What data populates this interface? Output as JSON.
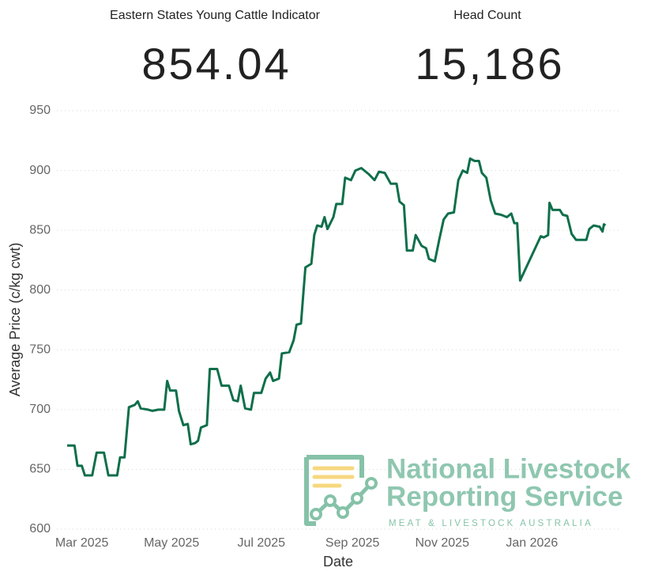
{
  "kpis": [
    {
      "label": "Eastern States Young Cattle Indicator",
      "value": "854.04"
    },
    {
      "label": "Head Count",
      "value": "15,186"
    }
  ],
  "logo": {
    "line1": "National Livestock",
    "line2": "Reporting Service",
    "tagline": "MEAT & LIVESTOCK AUSTRALIA"
  },
  "chart_data": {
    "type": "line",
    "x_label": "Date",
    "y_label": "Average Price (c/kg cwt)",
    "color": "#0f6f4a",
    "grid": true,
    "xlim": [
      "2025-02-12",
      "2026-03-02"
    ],
    "xticks": [
      {
        "value": "2025-03-01",
        "label": "Mar 2025"
      },
      {
        "value": "2025-05-01",
        "label": "May 2025"
      },
      {
        "value": "2025-07-01",
        "label": "Jul 2025"
      },
      {
        "value": "2025-09-01",
        "label": "Sep 2025"
      },
      {
        "value": "2025-11-01",
        "label": "Nov 2025"
      },
      {
        "value": "2026-01-01",
        "label": "Jan 2026"
      }
    ],
    "ylim": [
      600,
      950
    ],
    "yticks": [
      600,
      650,
      700,
      750,
      800,
      850,
      900,
      950
    ],
    "x": [
      "2025-02-19",
      "2025-02-24",
      "2025-02-26",
      "2025-03-01",
      "2025-03-03",
      "2025-03-08",
      "2025-03-11",
      "2025-03-16",
      "2025-03-19",
      "2025-03-25",
      "2025-03-27",
      "2025-03-30",
      "2025-04-02",
      "2025-04-06",
      "2025-04-08",
      "2025-04-10",
      "2025-04-15",
      "2025-04-18",
      "2025-04-22",
      "2025-04-26",
      "2025-04-28",
      "2025-04-30",
      "2025-05-04",
      "2025-05-06",
      "2025-05-09",
      "2025-05-12",
      "2025-05-14",
      "2025-05-17",
      "2025-05-19",
      "2025-05-21",
      "2025-05-25",
      "2025-05-27",
      "2025-06-01",
      "2025-06-04",
      "2025-06-09",
      "2025-06-12",
      "2025-06-15",
      "2025-06-17",
      "2025-06-20",
      "2025-06-24",
      "2025-06-26",
      "2025-07-01",
      "2025-07-04",
      "2025-07-07",
      "2025-07-09",
      "2025-07-13",
      "2025-07-15",
      "2025-07-20",
      "2025-07-23",
      "2025-07-25",
      "2025-07-28",
      "2025-07-31",
      "2025-08-04",
      "2025-08-06",
      "2025-08-08",
      "2025-08-11",
      "2025-08-13",
      "2025-08-15",
      "2025-08-19",
      "2025-08-21",
      "2025-08-25",
      "2025-08-27",
      "2025-08-31",
      "2025-09-03",
      "2025-09-07",
      "2025-09-12",
      "2025-09-16",
      "2025-09-19",
      "2025-09-23",
      "2025-09-27",
      "2025-10-01",
      "2025-10-03",
      "2025-10-06",
      "2025-10-08",
      "2025-10-12",
      "2025-10-14",
      "2025-10-18",
      "2025-10-21",
      "2025-10-23",
      "2025-10-27",
      "2025-10-30",
      "2025-11-02",
      "2025-11-05",
      "2025-11-09",
      "2025-11-12",
      "2025-11-15",
      "2025-11-18",
      "2025-11-20",
      "2025-11-23",
      "2025-11-26",
      "2025-11-28",
      "2025-12-01",
      "2025-12-04",
      "2025-12-07",
      "2025-12-11",
      "2025-12-15",
      "2025-12-18",
      "2025-12-20",
      "2025-12-22",
      "2025-12-24",
      "2026-01-07",
      "2026-01-09",
      "2026-01-12",
      "2026-01-13",
      "2026-01-15",
      "2026-01-20",
      "2026-01-22",
      "2026-01-25",
      "2026-01-28",
      "2026-01-31",
      "2026-02-04",
      "2026-02-07",
      "2026-02-09",
      "2026-02-12",
      "2026-02-16",
      "2026-02-18",
      "2026-02-19",
      "2026-02-20"
    ],
    "values": [
      670,
      670,
      653,
      653,
      645,
      645,
      664,
      664,
      645,
      645,
      660,
      660,
      702,
      704,
      707,
      701,
      700,
      699,
      700,
      700,
      724,
      716,
      716,
      699,
      687,
      688,
      671,
      672,
      674,
      685,
      687,
      734,
      734,
      720,
      720,
      708,
      707,
      720,
      701,
      700,
      714,
      714,
      726,
      731,
      724,
      726,
      747,
      748,
      758,
      771,
      772,
      819,
      822,
      846,
      854,
      853,
      861,
      851,
      861,
      872,
      872,
      894,
      892,
      900,
      902,
      897,
      892,
      899,
      898,
      889,
      889,
      874,
      871,
      833,
      833,
      846,
      837,
      835,
      826,
      824,
      842,
      859,
      864,
      865,
      892,
      900,
      898,
      910,
      908,
      908,
      898,
      894,
      875,
      864,
      863,
      861,
      864,
      856,
      856,
      808,
      845,
      844,
      846,
      873,
      867,
      867,
      863,
      862,
      847,
      842,
      842,
      842,
      851,
      854,
      853,
      849,
      855,
      854
    ]
  }
}
